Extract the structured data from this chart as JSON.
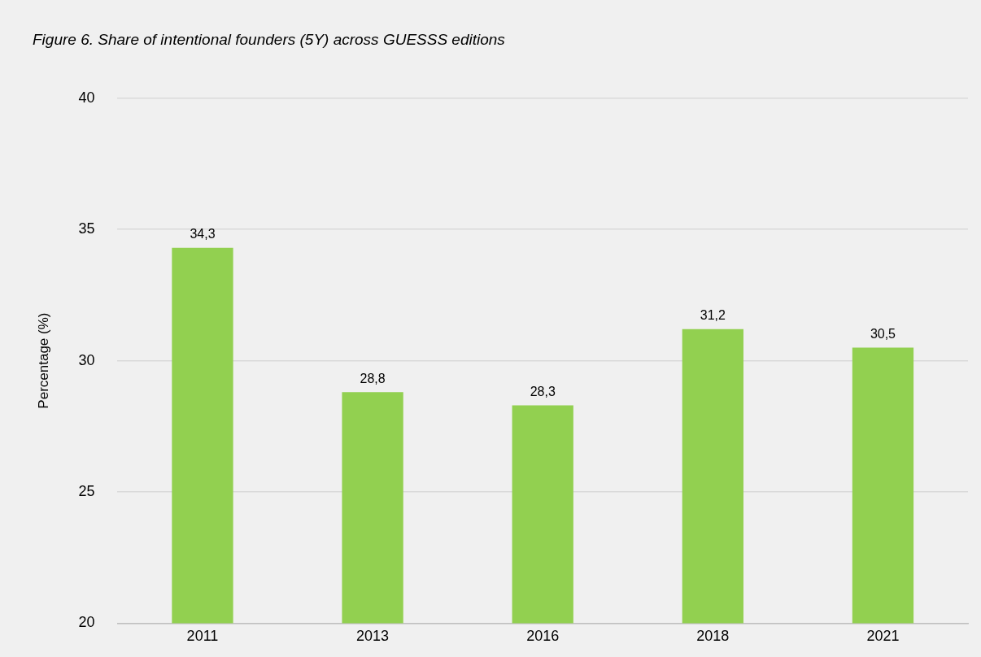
{
  "chart_data": {
    "type": "bar",
    "title": "Figure 6. Share of intentional founders (5Y) across GUESSS editions",
    "ylabel": "Percentage (%)",
    "categories": [
      "2011",
      "2013",
      "2016",
      "2018",
      "2021"
    ],
    "values": [
      34.3,
      28.8,
      28.3,
      31.2,
      30.5
    ],
    "value_labels": [
      "34,3",
      "28,8",
      "28,3",
      "31,2",
      "30,5"
    ],
    "color": "#92d050",
    "ylim": [
      20,
      40
    ],
    "yticks": [
      20,
      25,
      30,
      35,
      40
    ],
    "grid": "y",
    "legend": false
  }
}
